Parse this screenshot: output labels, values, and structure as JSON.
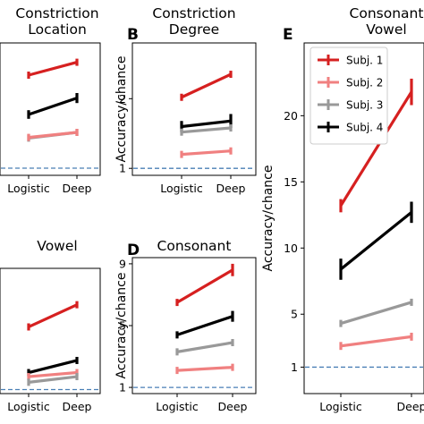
{
  "colors": {
    "subj1": "#d62020",
    "subj2": "#f08080",
    "subj3": "#999999",
    "subj4": "#000000",
    "chance": "#4a7fb5"
  },
  "chart_data": [
    {
      "id": "A",
      "letter": "",
      "type": "line",
      "title_lines": [
        "Constriction",
        "Location"
      ],
      "categories": [
        "Logistic",
        "Deep"
      ],
      "ylabel": "",
      "ylim": [
        0.9,
        2.75
      ],
      "yticks": [],
      "chance": 1,
      "series": [
        {
          "key": "subj1",
          "values": [
            2.3,
            2.48
          ],
          "err": [
            0.03,
            0.04
          ]
        },
        {
          "key": "subj4",
          "values": [
            1.75,
            1.98
          ],
          "err": [
            0.06,
            0.07
          ]
        },
        {
          "key": "subj3",
          "values": [
            1.42,
            1.5
          ],
          "err": [
            0.03,
            0.03
          ]
        },
        {
          "key": "subj2",
          "values": [
            1.43,
            1.5
          ],
          "err": [
            0.03,
            0.03
          ]
        }
      ]
    },
    {
      "id": "B",
      "letter": "B",
      "type": "line",
      "title_lines": [
        "Constriction",
        "Degree"
      ],
      "categories": [
        "Logistic",
        "Deep"
      ],
      "ylabel": "Accuracy/chance",
      "ylim": [
        0.9,
        2.8
      ],
      "yticks": [
        1,
        2
      ],
      "chance": 1,
      "series": [
        {
          "key": "subj1",
          "values": [
            2.02,
            2.35
          ],
          "err": [
            0.05,
            0.03
          ]
        },
        {
          "key": "subj4",
          "values": [
            1.6,
            1.68
          ],
          "err": [
            0.08,
            0.1
          ]
        },
        {
          "key": "subj3",
          "values": [
            1.52,
            1.58
          ],
          "err": [
            0.04,
            0.03
          ]
        },
        {
          "key": "subj2",
          "values": [
            1.2,
            1.25
          ],
          "err": [
            0.05,
            0.05
          ]
        }
      ]
    },
    {
      "id": "C",
      "letter": "",
      "type": "line",
      "title_lines": [
        "Vowel"
      ],
      "categories": [
        "Logistic",
        "Deep"
      ],
      "ylabel": "",
      "ylim": [
        0.9,
        4.0
      ],
      "yticks": [],
      "chance": 1,
      "series": [
        {
          "key": "subj1",
          "values": [
            2.55,
            3.1
          ],
          "err": [
            0.03,
            0.03
          ]
        },
        {
          "key": "subj4",
          "values": [
            1.42,
            1.72
          ],
          "err": [
            0.03,
            0.04
          ]
        },
        {
          "key": "subj2",
          "values": [
            1.32,
            1.42
          ],
          "err": [
            0.03,
            0.03
          ]
        },
        {
          "key": "subj3",
          "values": [
            1.18,
            1.32
          ],
          "err": [
            0.02,
            0.02
          ]
        }
      ]
    },
    {
      "id": "D",
      "letter": "D",
      "type": "line",
      "title_lines": [
        "Consonant"
      ],
      "categories": [
        "Logistic",
        "Deep"
      ],
      "ylabel": "Accuracy/chance",
      "ylim": [
        0.6,
        9.4
      ],
      "yticks": [
        1,
        5,
        9
      ],
      "chance": 1,
      "series": [
        {
          "key": "subj1",
          "values": [
            6.5,
            8.6
          ],
          "err": [
            0.12,
            0.4
          ]
        },
        {
          "key": "subj4",
          "values": [
            4.4,
            5.6
          ],
          "err": [
            0.15,
            0.35
          ]
        },
        {
          "key": "subj3",
          "values": [
            3.3,
            3.9
          ],
          "err": [
            0.1,
            0.1
          ]
        },
        {
          "key": "subj2",
          "values": [
            2.1,
            2.3
          ],
          "err": [
            0.08,
            0.08
          ]
        }
      ]
    },
    {
      "id": "E",
      "letter": "E",
      "type": "line",
      "title_lines": [
        "Consonant",
        "Vowel"
      ],
      "categories": [
        "Logistic",
        "Deep"
      ],
      "ylabel": "Accuracy/chance",
      "ylim": [
        -1,
        25.5
      ],
      "yticks": [
        1,
        5,
        10,
        15,
        20
      ],
      "chance": 1,
      "series": [
        {
          "key": "subj1",
          "values": [
            13.2,
            21.8
          ],
          "err": [
            0.5,
            1.0
          ]
        },
        {
          "key": "subj4",
          "values": [
            8.4,
            12.7
          ],
          "err": [
            0.8,
            0.8
          ]
        },
        {
          "key": "subj3",
          "values": [
            4.3,
            5.9
          ],
          "err": [
            0.2,
            0.2
          ]
        },
        {
          "key": "subj2",
          "values": [
            2.6,
            3.3
          ],
          "err": [
            0.3,
            0.3
          ]
        }
      ],
      "legend": {
        "placement": "top-left",
        "entries": [
          {
            "key": "subj1",
            "label": "Subj. 1"
          },
          {
            "key": "subj2",
            "label": "Subj. 2"
          },
          {
            "key": "subj3",
            "label": "Subj. 3"
          },
          {
            "key": "subj4",
            "label": "Subj. 4"
          }
        ]
      }
    }
  ]
}
